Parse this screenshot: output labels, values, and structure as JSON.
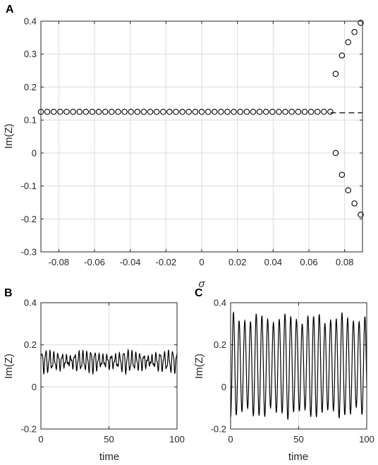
{
  "chart_data": [
    {
      "panel": "A",
      "type": "scatter",
      "ylabel": "Im(Z)",
      "xlabel": "σ",
      "xlim": [
        -0.09,
        0.09
      ],
      "ylim": [
        -0.3,
        0.4
      ],
      "xticks": [
        -0.08,
        -0.06,
        -0.04,
        -0.02,
        0,
        0.02,
        0.04,
        0.06,
        0.08
      ],
      "xticklabels": [
        "-0.08",
        "-0.06",
        "-0.04",
        "-0.02",
        "0",
        "0.02",
        "0.04",
        "0.06",
        "0.08"
      ],
      "yticks": [
        -0.3,
        -0.2,
        -0.1,
        0,
        0.1,
        0.2,
        0.3,
        0.4
      ],
      "yticklabels": [
        "-0.3",
        "-0.2",
        "-0.1",
        "0",
        "0.1",
        "0.2",
        "0.3",
        "0.4"
      ],
      "grid": true,
      "flat_branch": {
        "x_start": -0.09,
        "x_end": 0.072,
        "count": 46,
        "y": 0.125
      },
      "upper_branch": {
        "x": [
          0.075,
          0.0785,
          0.082,
          0.0855,
          0.089
        ],
        "y": [
          0.24,
          0.296,
          0.336,
          0.367,
          0.395
        ]
      },
      "lower_branch": {
        "x": [
          0.075,
          0.0785,
          0.082,
          0.0855,
          0.089
        ],
        "y": [
          0.0,
          -0.066,
          -0.113,
          -0.153,
          -0.187
        ]
      },
      "dashed_line": {
        "y": 0.122,
        "x_start": 0.072,
        "x_end": 0.09
      }
    },
    {
      "panel": "B",
      "type": "line",
      "ylabel": "Im(Z)",
      "xlabel": "time",
      "xlim": [
        0,
        100
      ],
      "ylim": [
        -0.2,
        0.4
      ],
      "xticks": [
        0,
        50,
        100
      ],
      "xticklabels": [
        "0",
        "50",
        "100"
      ],
      "yticks": [
        -0.2,
        0,
        0.2,
        0.4
      ],
      "yticklabels": [
        "-0.2",
        "0",
        "0.2",
        "0.4"
      ],
      "grid": true,
      "signal": {
        "mean": 0.122,
        "amplitude": 0.045,
        "period": 3.0
      }
    },
    {
      "panel": "C",
      "type": "line",
      "ylabel": "Im(Z)",
      "xlabel": "time",
      "xlim": [
        0,
        100
      ],
      "ylim": [
        -0.2,
        0.4
      ],
      "xticks": [
        0,
        50,
        100
      ],
      "xticklabels": [
        "0",
        "50",
        "100"
      ],
      "yticks": [
        -0.2,
        0,
        0.2,
        0.4
      ],
      "yticklabels": [
        "-0.2",
        "0",
        "0.2",
        "0.4"
      ],
      "grid": true,
      "signal": {
        "mean": 0.1,
        "amplitude": 0.245,
        "period": 4.2
      }
    }
  ]
}
